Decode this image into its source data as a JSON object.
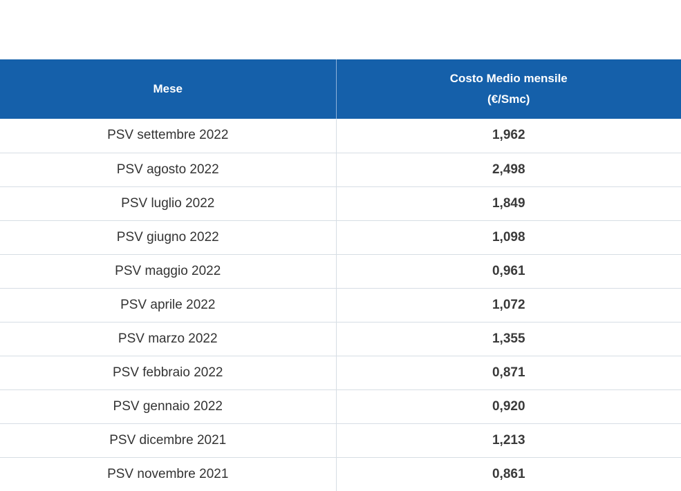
{
  "table": {
    "headers": {
      "month": "Mese",
      "cost_line1": "Costo Medio mensile",
      "cost_line2": "(€/Smc)"
    },
    "rows": [
      {
        "month": "PSV settembre 2022",
        "cost": "1,962"
      },
      {
        "month": "PSV agosto 2022",
        "cost": "2,498"
      },
      {
        "month": "PSV luglio 2022",
        "cost": "1,849"
      },
      {
        "month": "PSV giugno 2022",
        "cost": "1,098"
      },
      {
        "month": "PSV maggio 2022",
        "cost": "0,961"
      },
      {
        "month": "PSV aprile 2022",
        "cost": "1,072"
      },
      {
        "month": "PSV marzo 2022",
        "cost": "1,355"
      },
      {
        "month": "PSV febbraio 2022",
        "cost": "0,871"
      },
      {
        "month": "PSV gennaio 2022",
        "cost": "0,920"
      },
      {
        "month": "PSV dicembre 2021",
        "cost": "1,213"
      },
      {
        "month": "PSV novembre 2021",
        "cost": "0,861"
      }
    ]
  },
  "colors": {
    "header_bg": "#1560aa",
    "header_text": "#ffffff",
    "row_divider": "#d6dde4"
  }
}
